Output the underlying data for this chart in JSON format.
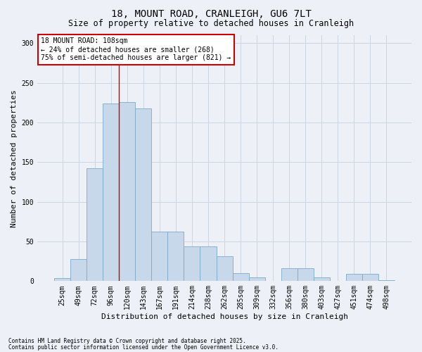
{
  "title1": "18, MOUNT ROAD, CRANLEIGH, GU6 7LT",
  "title2": "Size of property relative to detached houses in Cranleigh",
  "xlabel": "Distribution of detached houses by size in Cranleigh",
  "ylabel": "Number of detached properties",
  "categories": [
    "25sqm",
    "49sqm",
    "72sqm",
    "96sqm",
    "120sqm",
    "143sqm",
    "167sqm",
    "191sqm",
    "214sqm",
    "238sqm",
    "262sqm",
    "285sqm",
    "309sqm",
    "332sqm",
    "356sqm",
    "380sqm",
    "403sqm",
    "427sqm",
    "451sqm",
    "474sqm",
    "498sqm"
  ],
  "values": [
    4,
    28,
    142,
    224,
    226,
    218,
    62,
    62,
    44,
    44,
    31,
    10,
    5,
    0,
    16,
    16,
    5,
    0,
    9,
    9,
    1
  ],
  "bar_color": "#c8d8eb",
  "bar_edge_color": "#7aaac8",
  "grid_color": "#cdd5e0",
  "annotation_text": "18 MOUNT ROAD: 108sqm\n← 24% of detached houses are smaller (268)\n75% of semi-detached houses are larger (821) →",
  "vline_x_bin": 3.5,
  "vline_color": "#cc0000",
  "annotation_box_facecolor": "#ffffff",
  "annotation_box_edgecolor": "#cc0000",
  "footer1": "Contains HM Land Registry data © Crown copyright and database right 2025.",
  "footer2": "Contains public sector information licensed under the Open Government Licence v3.0.",
  "ylim": [
    0,
    310
  ],
  "yticks": [
    0,
    50,
    100,
    150,
    200,
    250,
    300
  ],
  "background_color": "#edf1f7",
  "title1_fontsize": 10,
  "title2_fontsize": 8.5,
  "tick_fontsize": 7,
  "ylabel_fontsize": 8,
  "xlabel_fontsize": 8,
  "footer_fontsize": 5.5
}
